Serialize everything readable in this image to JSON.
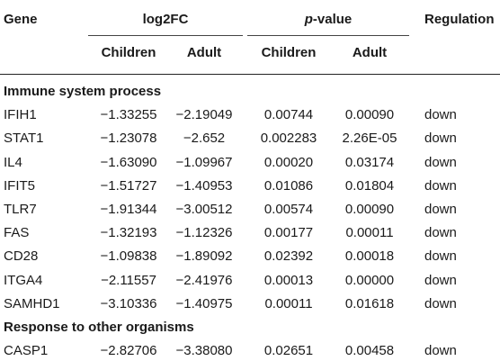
{
  "header": {
    "gene": "Gene",
    "log2fc": "log2FC",
    "pvalue_italic": "p",
    "pvalue_rest": "-value",
    "regulation": "Regulation",
    "children": "Children",
    "adult": "Adult",
    "children2": "Children",
    "adult2": "Adult"
  },
  "sections": [
    {
      "title": "Immune system process",
      "rows": [
        {
          "gene": "IFIH1",
          "fc_children": "−1.33255",
          "fc_adult": "−2.19049",
          "p_children": "0.00744",
          "p_adult": "0.00090",
          "regulation": "down"
        },
        {
          "gene": "STAT1",
          "fc_children": "−1.23078",
          "fc_adult": "−2.652",
          "p_children": "0.002283",
          "p_adult": "2.26E-05",
          "regulation": "down"
        },
        {
          "gene": "IL4",
          "fc_children": "−1.63090",
          "fc_adult": "−1.09967",
          "p_children": "0.00020",
          "p_adult": "0.03174",
          "regulation": "down"
        },
        {
          "gene": "IFIT5",
          "fc_children": "−1.51727",
          "fc_adult": "−1.40953",
          "p_children": "0.01086",
          "p_adult": "0.01804",
          "regulation": "down"
        },
        {
          "gene": "TLR7",
          "fc_children": "−1.91344",
          "fc_adult": "−3.00512",
          "p_children": "0.00574",
          "p_adult": "0.00090",
          "regulation": "down"
        },
        {
          "gene": "FAS",
          "fc_children": "−1.32193",
          "fc_adult": "−1.12326",
          "p_children": "0.00177",
          "p_adult": "0.00011",
          "regulation": "down"
        },
        {
          "gene": "CD28",
          "fc_children": "−1.09838",
          "fc_adult": "−1.89092",
          "p_children": "0.02392",
          "p_adult": "0.00018",
          "regulation": "down"
        },
        {
          "gene": "ITGA4",
          "fc_children": "−2.11557",
          "fc_adult": "−2.41976",
          "p_children": "0.00013",
          "p_adult": "0.00000",
          "regulation": "down"
        },
        {
          "gene": "SAMHD1",
          "fc_children": "−3.10336",
          "fc_adult": "−1.40975",
          "p_children": "0.00011",
          "p_adult": "0.01618",
          "regulation": "down"
        }
      ]
    },
    {
      "title": "Response to other organisms",
      "rows": [
        {
          "gene": "CASP1",
          "fc_children": "−2.82706",
          "fc_adult": "−3.38080",
          "p_children": "0.02651",
          "p_adult": "0.00458",
          "regulation": "down"
        }
      ]
    }
  ]
}
